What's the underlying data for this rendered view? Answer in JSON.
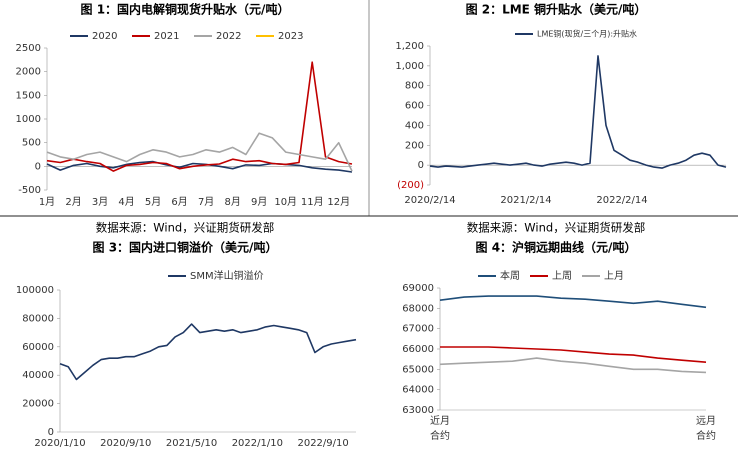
{
  "chart_data": [
    {
      "type": "line",
      "title": "图 1：国内电解铜现货升贴水（元/吨）",
      "source": "数据来源：Wind，兴证期货研发部",
      "categories": [
        "1月",
        null,
        "2月",
        null,
        "3月",
        null,
        "4月",
        null,
        "5月",
        null,
        "6月",
        null,
        "7月",
        null,
        "8月",
        null,
        "9月",
        null,
        "10月",
        null,
        "11月",
        null,
        "12月",
        null
      ],
      "ylim": [
        -500,
        2500
      ],
      "yticks": [
        -500,
        0,
        500,
        1000,
        1500,
        2000,
        2500
      ],
      "legend": "top",
      "series": [
        {
          "name": "2020",
          "color": "#1f3864",
          "values": [
            50,
            -80,
            20,
            60,
            0,
            -30,
            40,
            80,
            100,
            30,
            -20,
            60,
            40,
            0,
            -50,
            30,
            20,
            60,
            40,
            20,
            -30,
            -60,
            -80,
            -120
          ]
        },
        {
          "name": "2021",
          "color": "#c00000",
          "values": [
            120,
            80,
            150,
            100,
            60,
            -100,
            20,
            40,
            80,
            60,
            -50,
            0,
            30,
            50,
            150,
            100,
            120,
            60,
            40,
            80,
            2200,
            200,
            100,
            50
          ]
        },
        {
          "name": "2022",
          "color": "#a5a5a5",
          "values": [
            300,
            200,
            150,
            250,
            300,
            200,
            100,
            250,
            350,
            300,
            200,
            250,
            350,
            300,
            400,
            250,
            700,
            600,
            300,
            250,
            200,
            150,
            500,
            -100
          ]
        },
        {
          "name": "2023",
          "color": "#ffc000",
          "values": [
            null,
            null,
            null,
            null,
            null,
            null,
            null,
            null,
            null,
            null,
            null,
            null,
            null,
            null,
            null,
            null,
            null,
            null,
            null,
            null,
            null,
            null,
            null,
            null
          ]
        }
      ]
    },
    {
      "type": "line",
      "title": "图 2：LME 铜升贴水（美元/吨）",
      "source": "数据来源：Wind，兴证期货研发部",
      "categories": [
        "2020/2/14",
        null,
        null,
        null,
        null,
        null,
        null,
        null,
        null,
        null,
        null,
        null,
        "2021/2/14",
        null,
        null,
        null,
        null,
        null,
        null,
        null,
        null,
        null,
        null,
        null,
        "2022/2/14",
        null,
        null,
        null,
        null,
        null,
        null,
        null,
        null,
        null,
        null,
        null,
        null,
        null
      ],
      "ylim": [
        -200,
        1200
      ],
      "yticks": [
        {
          "value": -200,
          "label": "(200)"
        },
        0,
        200,
        400,
        600,
        800,
        {
          "value": 1000,
          "label": "1,000"
        },
        {
          "value": 1200,
          "label": "1,200"
        }
      ],
      "legend": "top",
      "series": [
        {
          "name": "LME铜(现货/三个月):升贴水",
          "color": "#1f3864",
          "values": [
            -10,
            -20,
            -10,
            -15,
            -20,
            -10,
            0,
            10,
            20,
            10,
            0,
            10,
            20,
            0,
            -10,
            10,
            20,
            30,
            20,
            0,
            20,
            1100,
            400,
            150,
            100,
            50,
            30,
            0,
            -20,
            -30,
            0,
            20,
            50,
            100,
            120,
            100,
            0,
            -20
          ]
        }
      ]
    },
    {
      "type": "line",
      "title": "图 3：国内进口铜溢价（美元/吨）",
      "categories": [
        "2020/1/10",
        null,
        null,
        null,
        null,
        null,
        null,
        null,
        "2020/9/10",
        null,
        null,
        null,
        null,
        null,
        null,
        null,
        "2021/5/10",
        null,
        null,
        null,
        null,
        null,
        null,
        null,
        "2022/1/10",
        null,
        null,
        null,
        null,
        null,
        null,
        null,
        "2022/9/10",
        null,
        null,
        null,
        null
      ],
      "ylim": [
        0,
        100000
      ],
      "yticks": [
        0,
        20000,
        40000,
        60000,
        80000,
        100000
      ],
      "legend": "top",
      "series": [
        {
          "name": "SMM洋山铜溢价",
          "color": "#1f3864",
          "values": [
            48000,
            46000,
            37000,
            42000,
            47000,
            51000,
            52000,
            52000,
            53000,
            53000,
            55000,
            57000,
            60000,
            61000,
            67000,
            70000,
            76000,
            70000,
            71000,
            72000,
            71000,
            72000,
            70000,
            71000,
            72000,
            74000,
            75000,
            74000,
            73000,
            72000,
            70000,
            56000,
            60000,
            62000,
            63000,
            64000,
            65000
          ]
        }
      ]
    },
    {
      "type": "line",
      "title": "图 4：沪铜远期曲线（元/吨）",
      "categories": [
        "近月合约",
        null,
        null,
        null,
        null,
        null,
        null,
        null,
        null,
        null,
        null,
        "远月合约"
      ],
      "ylim": [
        63000,
        69000
      ],
      "yticks": [
        63000,
        64000,
        65000,
        66000,
        67000,
        68000,
        69000
      ],
      "legend": "top",
      "series": [
        {
          "name": "本周",
          "color": "#1f4e79",
          "values": [
            68400,
            68550,
            68600,
            68600,
            68600,
            68500,
            68450,
            68350,
            68250,
            68350,
            68200,
            68050
          ]
        },
        {
          "name": "上周",
          "color": "#c00000",
          "values": [
            66100,
            66100,
            66100,
            66050,
            66000,
            65950,
            65850,
            65750,
            65700,
            65550,
            65450,
            65350
          ]
        },
        {
          "name": "上月",
          "color": "#a5a5a5",
          "values": [
            65250,
            65300,
            65350,
            65400,
            65550,
            65400,
            65300,
            65150,
            65000,
            65000,
            64900,
            64850
          ]
        }
      ]
    }
  ]
}
